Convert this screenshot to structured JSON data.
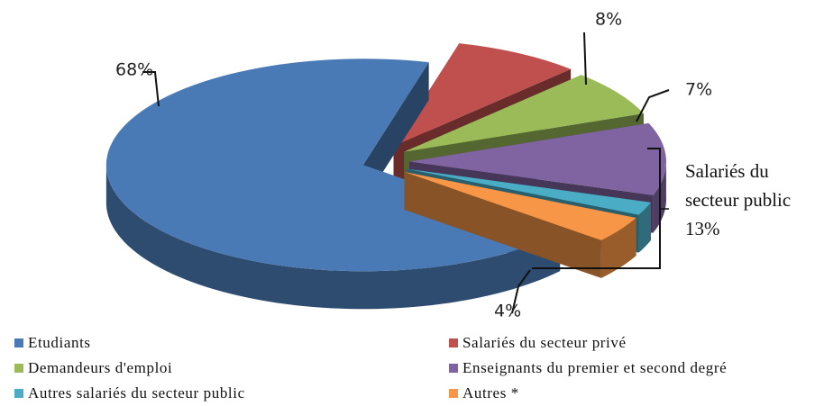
{
  "chart_data": {
    "type": "pie3d",
    "categories": [
      "Etudiants",
      "Salariés du secteur privé",
      "Demandeurs d'emploi",
      "Enseignants du premier et second degré",
      "Autres salariés du secteur public",
      "Autres *"
    ],
    "values": [
      68,
      8,
      7,
      11,
      2,
      4
    ],
    "value_labels": [
      "68%",
      "8%",
      "7%",
      null,
      null,
      "4%"
    ],
    "colors": [
      "#4a7ab5",
      "#c0504d",
      "#9bbb59",
      "#8064a2",
      "#4bacc6",
      "#f79646"
    ],
    "annotation": {
      "lines": [
        "Salariés du",
        "secteur public"
      ],
      "value": 13,
      "label": "13%"
    },
    "legend": "bottom"
  }
}
